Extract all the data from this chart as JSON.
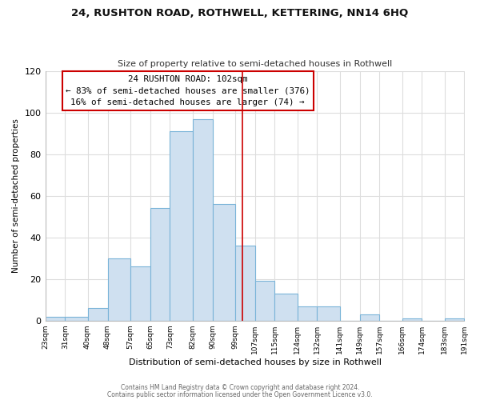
{
  "title": "24, RUSHTON ROAD, ROTHWELL, KETTERING, NN14 6HQ",
  "subtitle": "Size of property relative to semi-detached houses in Rothwell",
  "xlabel": "Distribution of semi-detached houses by size in Rothwell",
  "ylabel": "Number of semi-detached properties",
  "bins": [
    23,
    31,
    40,
    48,
    57,
    65,
    73,
    82,
    90,
    99,
    107,
    115,
    124,
    132,
    141,
    149,
    157,
    166,
    174,
    183,
    191
  ],
  "counts": [
    2,
    2,
    6,
    30,
    26,
    54,
    91,
    97,
    56,
    36,
    19,
    13,
    7,
    7,
    0,
    3,
    0,
    1,
    0,
    1
  ],
  "bar_color": "#cfe0f0",
  "bar_edge_color": "#7ab4d8",
  "property_size": 102,
  "property_label": "24 RUSHTON ROAD: 102sqm",
  "pct_smaller": 83,
  "count_smaller": 376,
  "pct_larger": 16,
  "count_larger": 74,
  "vline_color": "#cc0000",
  "annotation_box_edge": "#cc0000",
  "ylim": [
    0,
    120
  ],
  "yticks": [
    0,
    20,
    40,
    60,
    80,
    100,
    120
  ],
  "tick_labels": [
    "23sqm",
    "31sqm",
    "40sqm",
    "48sqm",
    "57sqm",
    "65sqm",
    "73sqm",
    "82sqm",
    "90sqm",
    "99sqm",
    "107sqm",
    "115sqm",
    "124sqm",
    "132sqm",
    "141sqm",
    "149sqm",
    "157sqm",
    "166sqm",
    "174sqm",
    "183sqm",
    "191sqm"
  ],
  "footer1": "Contains HM Land Registry data © Crown copyright and database right 2024.",
  "footer2": "Contains public sector information licensed under the Open Government Licence v3.0.",
  "bg_color": "#ffffff",
  "plot_bg_color": "#ffffff",
  "grid_color": "#dddddd"
}
